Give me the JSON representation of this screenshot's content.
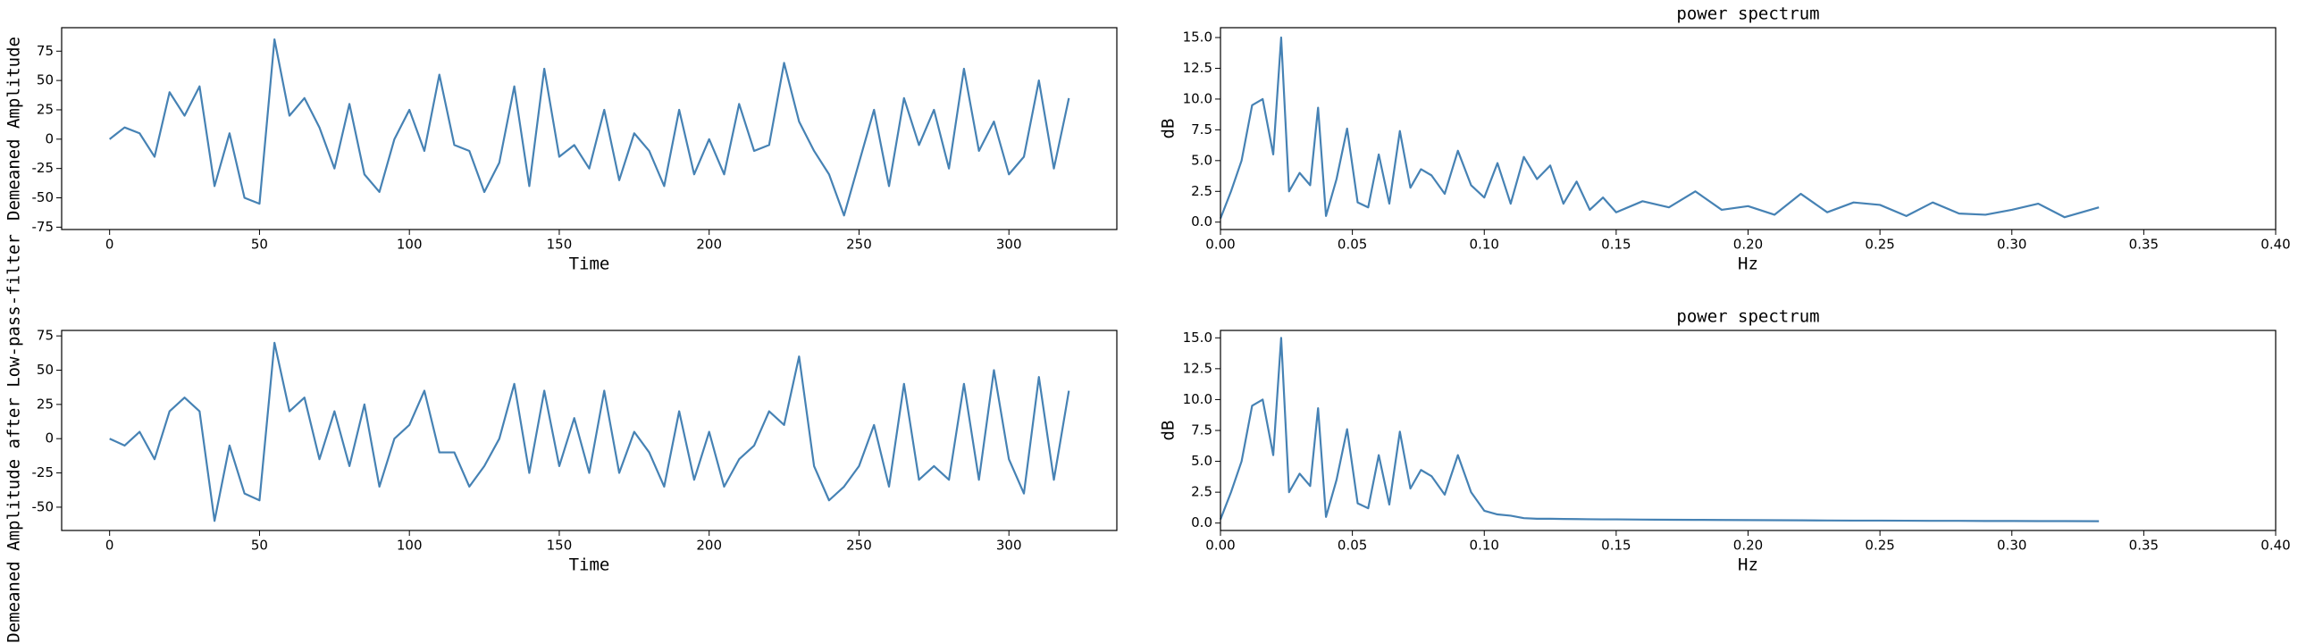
{
  "chart_data": [
    {
      "type": "line",
      "xlabel": "Time",
      "ylabel": "Demeaned Amplitude",
      "color": "#4682b4",
      "x": [
        0,
        5,
        10,
        15,
        20,
        25,
        30,
        35,
        40,
        45,
        50,
        55,
        60,
        65,
        70,
        75,
        80,
        85,
        90,
        95,
        100,
        105,
        110,
        115,
        120,
        125,
        130,
        135,
        140,
        145,
        150,
        155,
        160,
        165,
        170,
        175,
        180,
        185,
        190,
        195,
        200,
        205,
        210,
        215,
        220,
        225,
        230,
        235,
        240,
        245,
        250,
        255,
        260,
        265,
        270,
        275,
        280,
        285,
        290,
        295,
        300,
        305,
        310,
        315,
        320
      ],
      "values": [
        0,
        10,
        5,
        -15,
        40,
        20,
        45,
        -40,
        5,
        -50,
        -55,
        85,
        20,
        35,
        10,
        -25,
        30,
        -30,
        -45,
        0,
        25,
        -10,
        55,
        -5,
        -10,
        -45,
        -20,
        45,
        -40,
        60,
        -15,
        -5,
        -25,
        25,
        -35,
        5,
        -10,
        -40,
        25,
        -30,
        0,
        -30,
        30,
        -10,
        -5,
        65,
        15,
        -10,
        -30,
        -65,
        -20,
        25,
        -40,
        35,
        -5,
        25,
        -25,
        60,
        -10,
        15,
        -30,
        -15,
        50,
        -25,
        35
      ],
      "xlim": [
        -16,
        336
      ],
      "xticks": [
        0,
        50,
        100,
        150,
        200,
        250,
        300
      ],
      "ylim": [
        -77,
        95
      ],
      "yticks": [
        -75,
        -50,
        -25,
        0,
        25,
        50,
        75
      ]
    },
    {
      "type": "line",
      "title": "power spectrum",
      "xlabel": "Hz",
      "ylabel": "dB",
      "color": "#4682b4",
      "x": [
        0,
        0.004,
        0.008,
        0.012,
        0.016,
        0.02,
        0.023,
        0.026,
        0.03,
        0.034,
        0.037,
        0.04,
        0.044,
        0.048,
        0.052,
        0.056,
        0.06,
        0.064,
        0.068,
        0.072,
        0.076,
        0.08,
        0.085,
        0.09,
        0.095,
        0.1,
        0.105,
        0.11,
        0.115,
        0.12,
        0.125,
        0.13,
        0.135,
        0.14,
        0.145,
        0.15,
        0.16,
        0.17,
        0.18,
        0.19,
        0.2,
        0.21,
        0.22,
        0.23,
        0.24,
        0.25,
        0.26,
        0.27,
        0.28,
        0.29,
        0.3,
        0.31,
        0.32,
        0.333
      ],
      "values": [
        0.3,
        2.5,
        5,
        9.5,
        10,
        5.5,
        15,
        2.5,
        4,
        3,
        9.3,
        0.5,
        3.5,
        7.6,
        1.6,
        1.2,
        5.5,
        1.5,
        7.4,
        2.8,
        4.3,
        3.8,
        2.3,
        5.8,
        3,
        2,
        4.8,
        1.5,
        5.3,
        3.5,
        4.6,
        1.5,
        3.3,
        1,
        2,
        0.8,
        1.7,
        1.2,
        2.5,
        1,
        1.3,
        0.6,
        2.3,
        0.8,
        1.6,
        1.4,
        0.5,
        1.6,
        0.7,
        0.6,
        1.0,
        1.5,
        0.4,
        1.2
      ],
      "xlim": [
        0,
        0.4
      ],
      "xticks": [
        {
          "value": 0,
          "label": "0.00"
        },
        {
          "value": 0.05,
          "label": "0.05"
        },
        {
          "value": 0.1,
          "label": "0.10"
        },
        {
          "value": 0.15,
          "label": "0.15"
        },
        {
          "value": 0.2,
          "label": "0.20"
        },
        {
          "value": 0.25,
          "label": "0.25"
        },
        {
          "value": 0.3,
          "label": "0.30"
        },
        {
          "value": 0.35,
          "label": "0.35"
        },
        {
          "value": 0.4,
          "label": "0.40"
        }
      ],
      "ylim": [
        -0.6,
        15.8
      ],
      "yticks": [
        {
          "value": 0,
          "label": "0.0"
        },
        {
          "value": 2.5,
          "label": "2.5"
        },
        {
          "value": 5,
          "label": "5.0"
        },
        {
          "value": 7.5,
          "label": "7.5"
        },
        {
          "value": 10,
          "label": "10.0"
        },
        {
          "value": 12.5,
          "label": "12.5"
        },
        {
          "value": 15,
          "label": "15.0"
        }
      ]
    },
    {
      "type": "line",
      "xlabel": "Time",
      "ylabel": "Demeaned Amplitude after Low-pass-filter",
      "color": "#4682b4",
      "x": [
        0,
        5,
        10,
        15,
        20,
        25,
        30,
        35,
        40,
        45,
        50,
        55,
        60,
        65,
        70,
        75,
        80,
        85,
        90,
        95,
        100,
        105,
        110,
        115,
        120,
        125,
        130,
        135,
        140,
        145,
        150,
        155,
        160,
        165,
        170,
        175,
        180,
        185,
        190,
        195,
        200,
        205,
        210,
        215,
        220,
        225,
        230,
        235,
        240,
        245,
        250,
        255,
        260,
        265,
        270,
        275,
        280,
        285,
        290,
        295,
        300,
        305,
        310,
        315,
        320
      ],
      "values": [
        0,
        -5,
        5,
        -15,
        20,
        30,
        20,
        -60,
        -5,
        -40,
        -45,
        70,
        20,
        30,
        -15,
        20,
        -20,
        25,
        -35,
        0,
        10,
        35,
        -10,
        -10,
        -35,
        -20,
        0,
        40,
        -25,
        35,
        -20,
        15,
        -25,
        35,
        -25,
        5,
        -10,
        -35,
        20,
        -30,
        5,
        -35,
        -15,
        -5,
        20,
        10,
        60,
        -20,
        -45,
        -35,
        -20,
        10,
        -35,
        40,
        -30,
        -20,
        -30,
        40,
        -30,
        50,
        -15,
        -40,
        45,
        -30,
        35
      ],
      "xlim": [
        -16,
        336
      ],
      "xticks": [
        0,
        50,
        100,
        150,
        200,
        250,
        300
      ],
      "ylim": [
        -67,
        79
      ],
      "yticks": [
        -50,
        -25,
        0,
        25,
        50,
        75
      ]
    },
    {
      "type": "line",
      "title": "power spectrum",
      "xlabel": "Hz",
      "ylabel": "dB",
      "color": "#4682b4",
      "x": [
        0,
        0.004,
        0.008,
        0.012,
        0.016,
        0.02,
        0.023,
        0.026,
        0.03,
        0.034,
        0.037,
        0.04,
        0.044,
        0.048,
        0.052,
        0.056,
        0.06,
        0.064,
        0.068,
        0.072,
        0.076,
        0.08,
        0.085,
        0.09,
        0.095,
        0.1,
        0.105,
        0.11,
        0.115,
        0.12,
        0.125,
        0.13,
        0.135,
        0.14,
        0.145,
        0.15,
        0.16,
        0.17,
        0.18,
        0.19,
        0.2,
        0.21,
        0.22,
        0.23,
        0.24,
        0.25,
        0.26,
        0.27,
        0.28,
        0.29,
        0.3,
        0.31,
        0.32,
        0.333
      ],
      "values": [
        0.3,
        2.5,
        5,
        9.5,
        10,
        5.5,
        15,
        2.5,
        4,
        3,
        9.3,
        0.5,
        3.5,
        7.6,
        1.6,
        1.2,
        5.5,
        1.5,
        7.4,
        2.8,
        4.3,
        3.8,
        2.3,
        5.5,
        2.5,
        1,
        0.7,
        0.6,
        0.4,
        0.35,
        0.35,
        0.33,
        0.32,
        0.31,
        0.3,
        0.3,
        0.28,
        0.27,
        0.26,
        0.25,
        0.24,
        0.23,
        0.22,
        0.21,
        0.2,
        0.2,
        0.19,
        0.18,
        0.18,
        0.17,
        0.17,
        0.16,
        0.16,
        0.15
      ],
      "xlim": [
        0,
        0.4
      ],
      "xticks": [
        {
          "value": 0,
          "label": "0.00"
        },
        {
          "value": 0.05,
          "label": "0.05"
        },
        {
          "value": 0.1,
          "label": "0.10"
        },
        {
          "value": 0.15,
          "label": "0.15"
        },
        {
          "value": 0.2,
          "label": "0.20"
        },
        {
          "value": 0.25,
          "label": "0.25"
        },
        {
          "value": 0.3,
          "label": "0.30"
        },
        {
          "value": 0.35,
          "label": "0.35"
        },
        {
          "value": 0.4,
          "label": "0.40"
        }
      ],
      "ylim": [
        -0.6,
        15.6
      ],
      "yticks": [
        {
          "value": 0,
          "label": "0.0"
        },
        {
          "value": 2.5,
          "label": "2.5"
        },
        {
          "value": 5,
          "label": "5.0"
        },
        {
          "value": 7.5,
          "label": "7.5"
        },
        {
          "value": 10,
          "label": "10.0"
        },
        {
          "value": 12.5,
          "label": "12.5"
        },
        {
          "value": 15,
          "label": "15.0"
        }
      ]
    }
  ]
}
